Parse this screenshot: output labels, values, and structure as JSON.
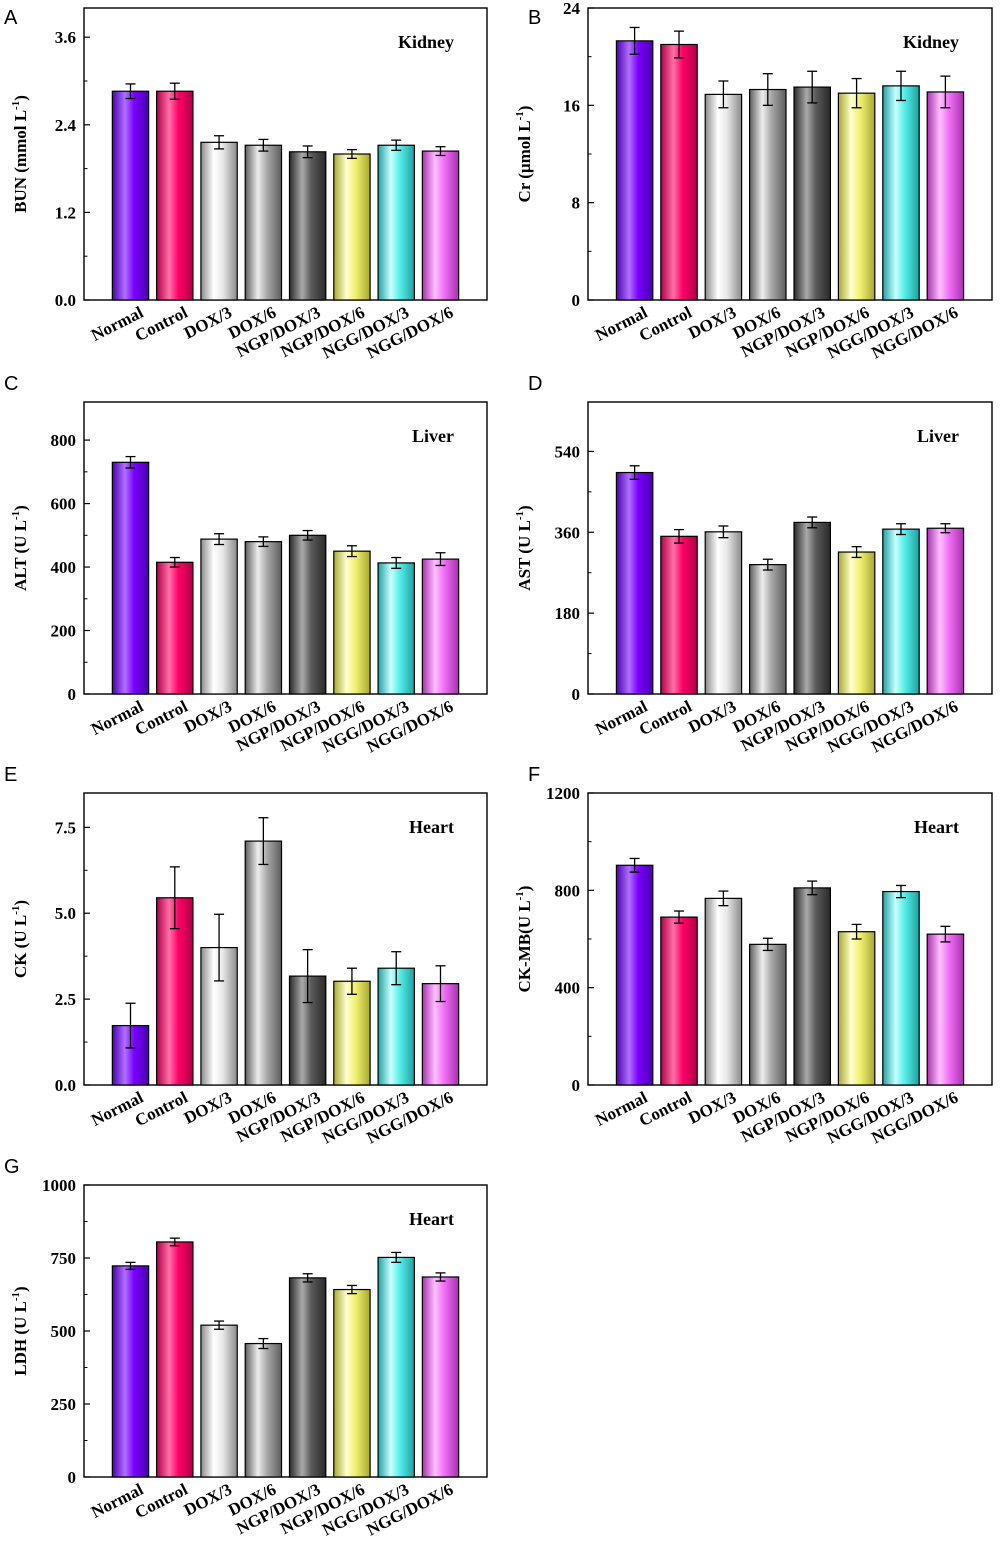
{
  "figure": {
    "categories": [
      "Normal",
      "Control",
      "DOX/3",
      "DOX/6",
      "NGP/DOX/3",
      "NGP/DOX/6",
      "NGG/DOX/3",
      "NGG/DOX/6"
    ],
    "bar_colors": [
      "#7a00ff",
      "#ff0066",
      "#e8e8e8",
      "#a8a8a8",
      "#5a5a5a",
      "#f0f070",
      "#55eee8",
      "#f070f5"
    ],
    "bar_highlights": [
      "#b070ff",
      "#ff70a8",
      "#ffffff",
      "#eeeeee",
      "#aaaaaa",
      "#ffffd0",
      "#c8ffff",
      "#ffc0ff"
    ],
    "bar_shades": [
      "#4a00b0",
      "#b00046",
      "#8a8a8a",
      "#5e5e5e",
      "#2a2a2a",
      "#a8a830",
      "#20a0a0",
      "#a830b0"
    ]
  },
  "chart_data": [
    {
      "type": "bar",
      "panel": "A",
      "organ": "Kidney",
      "ylabel_main": "BUN (mmol L",
      "ylabel_sup": "-1",
      "ylabel_end": ")",
      "ylim": [
        0,
        4.0
      ],
      "ticks": [
        0.0,
        1.2,
        2.4,
        3.6
      ],
      "tick_labels": [
        "0.0",
        "1.2",
        "2.4",
        "3.6"
      ],
      "values": [
        2.86,
        2.86,
        2.16,
        2.12,
        2.03,
        2.0,
        2.12,
        2.04
      ],
      "errors": [
        0.1,
        0.11,
        0.09,
        0.08,
        0.08,
        0.06,
        0.07,
        0.06
      ]
    },
    {
      "type": "bar",
      "panel": "B",
      "organ": "Kidney",
      "ylabel_main": "Cr (μmol L",
      "ylabel_sup": "-1",
      "ylabel_end": ")",
      "ylim": [
        0,
        24
      ],
      "ticks": [
        0,
        8,
        16,
        24
      ],
      "tick_labels": [
        "0",
        "8",
        "16",
        "24"
      ],
      "values": [
        21.3,
        21.0,
        16.9,
        17.3,
        17.5,
        17.0,
        17.6,
        17.1
      ],
      "errors": [
        1.1,
        1.1,
        1.1,
        1.3,
        1.3,
        1.2,
        1.2,
        1.3
      ]
    },
    {
      "type": "bar",
      "panel": "C",
      "organ": "Liver",
      "ylabel_main": "ALT (U L",
      "ylabel_sup": "-1",
      "ylabel_end": ")",
      "ylim": [
        0,
        920
      ],
      "ticks": [
        0,
        200,
        400,
        600,
        800
      ],
      "tick_labels": [
        "0",
        "200",
        "400",
        "600",
        "800"
      ],
      "values": [
        730,
        415,
        488,
        480,
        500,
        450,
        413,
        425
      ],
      "errors": [
        18,
        15,
        17,
        15,
        15,
        17,
        17,
        20
      ]
    },
    {
      "type": "bar",
      "panel": "D",
      "organ": "Liver",
      "ylabel_main": "AST (U L",
      "ylabel_sup": "-1",
      "ylabel_end": ")",
      "ylim": [
        0,
        650
      ],
      "ticks": [
        0,
        180,
        360,
        540
      ],
      "tick_labels": [
        "0",
        "180",
        "360",
        "540"
      ],
      "values": [
        493,
        351,
        361,
        288,
        382,
        316,
        367,
        369
      ],
      "errors": [
        15,
        15,
        13,
        12,
        12,
        12,
        12,
        10
      ]
    },
    {
      "type": "bar",
      "panel": "E",
      "organ": "Heart",
      "ylabel_main": "CK (U L",
      "ylabel_sup": "-1",
      "ylabel_end": ")",
      "ylim": [
        0,
        8.5
      ],
      "ticks": [
        0.0,
        2.5,
        5.0,
        7.5
      ],
      "tick_labels": [
        "0.0",
        "2.5",
        "5.0",
        "7.5"
      ],
      "values": [
        1.73,
        5.45,
        4.0,
        7.1,
        3.17,
        3.02,
        3.4,
        2.95
      ],
      "errors": [
        0.65,
        0.9,
        0.97,
        0.68,
        0.77,
        0.38,
        0.48,
        0.52
      ]
    },
    {
      "type": "bar",
      "panel": "F",
      "organ": "Heart",
      "ylabel_main": "CK-MB(U L",
      "ylabel_sup": "-1",
      "ylabel_end": ")",
      "ylim": [
        0,
        1200
      ],
      "ticks": [
        0,
        400,
        800,
        1200
      ],
      "tick_labels": [
        "0",
        "400",
        "800",
        "1200"
      ],
      "values": [
        903,
        690,
        767,
        578,
        810,
        630,
        795,
        620
      ],
      "errors": [
        28,
        25,
        30,
        25,
        28,
        30,
        25,
        32
      ]
    },
    {
      "type": "bar",
      "panel": "G",
      "organ": "Heart",
      "ylabel_main": "LDH (U L",
      "ylabel_sup": "-1",
      "ylabel_end": ")",
      "ylim": [
        0,
        1000
      ],
      "ticks": [
        0,
        250,
        500,
        750,
        1000
      ],
      "tick_labels": [
        "0",
        "250",
        "500",
        "750",
        "1000"
      ],
      "values": [
        723,
        805,
        520,
        457,
        682,
        642,
        752,
        685
      ],
      "errors": [
        12,
        13,
        14,
        17,
        14,
        14,
        17,
        14
      ]
    }
  ]
}
